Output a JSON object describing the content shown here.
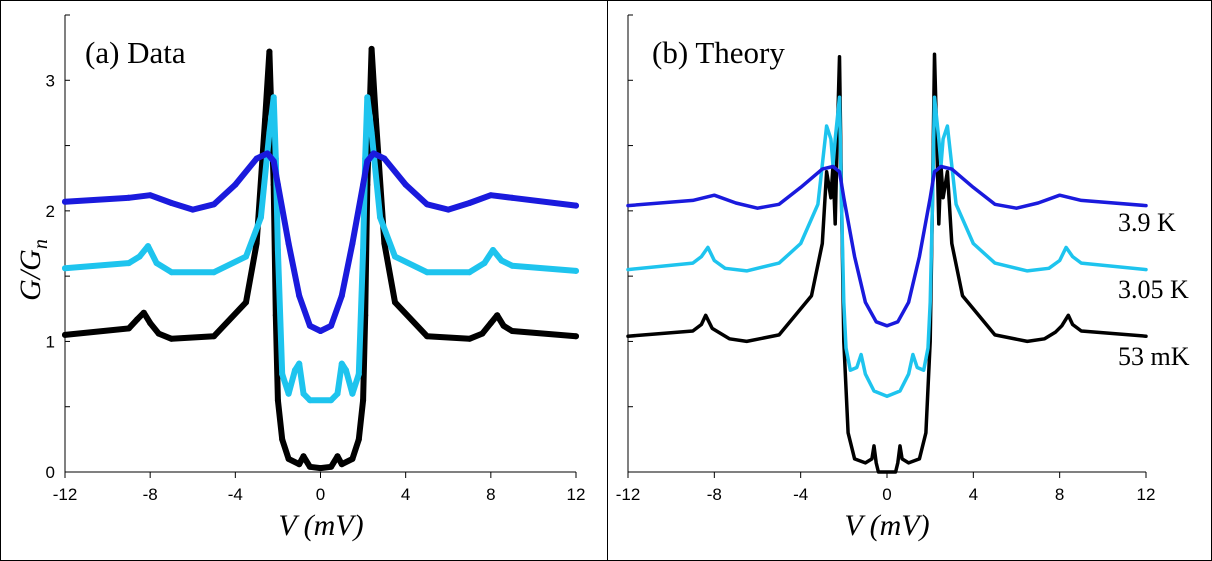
{
  "chart_data": [
    {
      "type": "scatter",
      "panel": "a",
      "title": "(a) Data",
      "xlabel": "V (mV)",
      "ylabel": "G/G_n",
      "ylabel_main": "G/G",
      "ylabel_sub": "n",
      "xlim": [
        -12,
        12
      ],
      "ylim": [
        0,
        3.5
      ],
      "xticks": [
        -12,
        -8,
        -4,
        0,
        4,
        8,
        12
      ],
      "yticks": [
        0,
        1,
        2,
        3
      ],
      "series": [
        {
          "name": "53 mK",
          "color": "#000000",
          "offset": 0,
          "x": [
            -12,
            -9,
            -8.6,
            -8.3,
            -8,
            -7.6,
            -7,
            -5,
            -3.5,
            -3,
            -2.6,
            -2.4,
            -2.2,
            -2.1,
            -2.0,
            -1.8,
            -1.5,
            -1,
            -0.8,
            -0.5,
            0,
            0.5,
            0.8,
            1,
            1.5,
            1.8,
            2.0,
            2.1,
            2.2,
            2.4,
            2.6,
            3,
            3.5,
            5,
            7,
            7.6,
            8,
            8.3,
            8.6,
            9,
            12
          ],
          "values": [
            1.05,
            1.1,
            1.17,
            1.22,
            1.14,
            1.06,
            1.02,
            1.04,
            1.3,
            1.75,
            2.7,
            3.22,
            2.2,
            1.2,
            0.55,
            0.25,
            0.1,
            0.06,
            0.12,
            0.04,
            0.03,
            0.04,
            0.12,
            0.06,
            0.1,
            0.25,
            0.55,
            1.2,
            2.2,
            3.24,
            2.7,
            1.75,
            1.3,
            1.04,
            1.02,
            1.06,
            1.14,
            1.2,
            1.12,
            1.08,
            1.04
          ]
        },
        {
          "name": "3.05 K",
          "color": "#1ec4ee",
          "offset": 0.5,
          "x": [
            -12,
            -9,
            -8.5,
            -8.1,
            -7.7,
            -7,
            -5,
            -3.5,
            -2.8,
            -2.4,
            -2.2,
            -2.1,
            -2.0,
            -1.8,
            -1.5,
            -1.2,
            -1.0,
            -0.8,
            -0.5,
            0.5,
            0.8,
            1.0,
            1.2,
            1.5,
            1.8,
            2.0,
            2.1,
            2.2,
            2.4,
            2.8,
            3.5,
            5,
            7,
            7.7,
            8.1,
            8.5,
            9,
            12
          ],
          "values": [
            1.56,
            1.6,
            1.65,
            1.73,
            1.6,
            1.53,
            1.53,
            1.65,
            1.95,
            2.6,
            2.87,
            2.4,
            1.7,
            0.75,
            0.6,
            0.78,
            0.83,
            0.6,
            0.55,
            0.55,
            0.6,
            0.83,
            0.78,
            0.6,
            0.75,
            1.7,
            2.4,
            2.87,
            2.6,
            1.95,
            1.65,
            1.53,
            1.53,
            1.6,
            1.7,
            1.62,
            1.58,
            1.54
          ]
        },
        {
          "name": "3.9 K",
          "color": "#1a1add",
          "offset": 1.0,
          "x": [
            -12,
            -9,
            -8,
            -7,
            -6,
            -5,
            -4,
            -3,
            -2.5,
            -2.2,
            -2,
            -1.5,
            -1,
            -0.5,
            0,
            0.5,
            1,
            1.5,
            2,
            2.2,
            2.5,
            3,
            4,
            5,
            6,
            7,
            8,
            9,
            12
          ],
          "values": [
            2.07,
            2.1,
            2.12,
            2.06,
            2.01,
            2.05,
            2.2,
            2.4,
            2.44,
            2.38,
            2.2,
            1.75,
            1.35,
            1.12,
            1.08,
            1.12,
            1.35,
            1.75,
            2.2,
            2.38,
            2.44,
            2.4,
            2.2,
            2.05,
            2.01,
            2.06,
            2.12,
            2.1,
            2.04
          ]
        }
      ]
    },
    {
      "type": "line",
      "panel": "b",
      "title": "(b) Theory",
      "xlabel": "V (mV)",
      "xlim": [
        -12,
        12
      ],
      "ylim": [
        0,
        3.5
      ],
      "xticks": [
        -12,
        -8,
        -4,
        0,
        4,
        8,
        12
      ],
      "series": [
        {
          "name": "53 mK",
          "label": "53 mK",
          "color": "#000000",
          "offset": 0,
          "x": [
            -12,
            -9,
            -8.6,
            -8.4,
            -8.1,
            -7.8,
            -7.3,
            -6.5,
            -5,
            -3.5,
            -3.0,
            -2.8,
            -2.6,
            -2.5,
            -2.4,
            -2.3,
            -2.2,
            -2.1,
            -2.0,
            -1.8,
            -1.5,
            -1.0,
            -0.7,
            -0.6,
            -0.5,
            -0.4,
            0,
            0.4,
            0.5,
            0.6,
            0.7,
            1.0,
            1.5,
            1.8,
            2.0,
            2.1,
            2.2,
            2.3,
            2.4,
            2.5,
            2.6,
            2.8,
            3.0,
            3.5,
            5,
            6.5,
            7.3,
            7.8,
            8.1,
            8.4,
            8.6,
            9,
            12
          ],
          "values": [
            1.04,
            1.08,
            1.13,
            1.2,
            1.1,
            1.07,
            1.02,
            1.0,
            1.05,
            1.35,
            1.75,
            2.3,
            2.1,
            2.35,
            1.9,
            2.6,
            3.18,
            2.0,
            1.0,
            0.3,
            0.1,
            0.07,
            0.1,
            0.2,
            0.07,
            0.0,
            0.0,
            0.0,
            0.07,
            0.2,
            0.1,
            0.07,
            0.1,
            0.3,
            1.0,
            2.0,
            3.2,
            2.6,
            1.9,
            2.35,
            2.1,
            2.3,
            1.75,
            1.35,
            1.05,
            1.0,
            1.02,
            1.07,
            1.12,
            1.2,
            1.13,
            1.08,
            1.04
          ]
        },
        {
          "name": "3.05 K",
          "label": "3.05 K",
          "color": "#1ec4ee",
          "offset": 0.5,
          "x": [
            -12,
            -9,
            -8.6,
            -8.3,
            -8.0,
            -7.5,
            -6.5,
            -5,
            -4,
            -3.2,
            -2.8,
            -2.6,
            -2.5,
            -2.4,
            -2.2,
            -2.1,
            -2.0,
            -1.9,
            -1.7,
            -1.4,
            -1.2,
            -1.0,
            -0.6,
            0,
            0.6,
            1.0,
            1.2,
            1.4,
            1.7,
            1.9,
            2.0,
            2.1,
            2.2,
            2.4,
            2.5,
            2.6,
            2.8,
            3.2,
            4,
            5,
            6.5,
            7.5,
            8.0,
            8.3,
            8.6,
            9,
            12
          ],
          "values": [
            1.55,
            1.6,
            1.65,
            1.72,
            1.62,
            1.56,
            1.54,
            1.6,
            1.75,
            2.05,
            2.65,
            2.55,
            2.35,
            2.55,
            2.87,
            2.0,
            1.3,
            0.95,
            0.78,
            0.8,
            0.9,
            0.75,
            0.62,
            0.58,
            0.62,
            0.75,
            0.9,
            0.8,
            0.78,
            0.95,
            1.3,
            2.0,
            2.87,
            2.55,
            2.35,
            2.55,
            2.65,
            2.05,
            1.75,
            1.6,
            1.54,
            1.56,
            1.62,
            1.72,
            1.65,
            1.6,
            1.55
          ]
        },
        {
          "name": "3.9 K",
          "label": "3.9 K",
          "color": "#1a1add",
          "offset": 1.0,
          "x": [
            -12,
            -9,
            -8,
            -7,
            -6,
            -5,
            -4,
            -3,
            -2.5,
            -2.2,
            -2,
            -1.5,
            -1,
            -0.5,
            0,
            0.5,
            1,
            1.5,
            2,
            2.2,
            2.5,
            3,
            4,
            5,
            6,
            7,
            8,
            9,
            12
          ],
          "values": [
            2.04,
            2.08,
            2.12,
            2.06,
            2.02,
            2.05,
            2.18,
            2.32,
            2.34,
            2.3,
            2.1,
            1.65,
            1.3,
            1.15,
            1.12,
            1.15,
            1.3,
            1.65,
            2.1,
            2.3,
            2.34,
            2.32,
            2.18,
            2.05,
            2.02,
            2.06,
            2.12,
            2.08,
            2.04
          ]
        }
      ]
    }
  ]
}
